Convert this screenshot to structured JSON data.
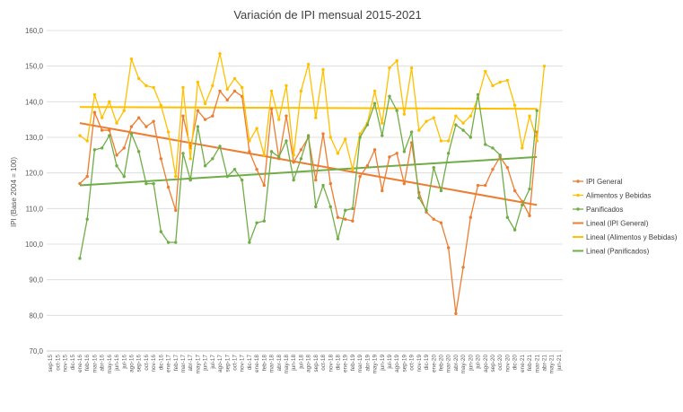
{
  "chart_data": {
    "type": "line",
    "title": "Variación de IPI mensual 2015-2021",
    "ylabel": "IPI (Base 2004 = 100)",
    "xlabel": "",
    "ylim": [
      70,
      160
    ],
    "yticks": [
      "70,0",
      "80,0",
      "90,0",
      "100,0",
      "110,0",
      "120,0",
      "130,0",
      "140,0",
      "150,0",
      "160,0"
    ],
    "grid": true,
    "legend_position": "right",
    "categories": [
      "sep-15",
      "oct-15",
      "nov-15",
      "dic-15",
      "ene-16",
      "feb-16",
      "mar-16",
      "abr-16",
      "may-16",
      "jun-16",
      "jul-16",
      "ago-16",
      "sep-16",
      "oct-16",
      "nov-16",
      "dic-16",
      "ene-17",
      "feb-17",
      "mar-17",
      "abr-17",
      "may-17",
      "jun-17",
      "jul-17",
      "ago-17",
      "sep-17",
      "oct-17",
      "nov-17",
      "dic-17",
      "ene-18",
      "feb-18",
      "mar-18",
      "abr-18",
      "may-18",
      "jun-18",
      "jul-18",
      "ago-18",
      "sep-18",
      "oct-18",
      "nov-18",
      "dic-18",
      "ene-19",
      "feb-19",
      "mar-19",
      "abr-19",
      "may-19",
      "jun-19",
      "jul-19",
      "ago-19",
      "sep-19",
      "oct-19",
      "nov-19",
      "dic-19",
      "ene-20",
      "feb-20",
      "mar-20",
      "abr-20",
      "may-20",
      "jun-20",
      "jul-20",
      "ago-20",
      "sep-20",
      "oct-20",
      "nov-20",
      "dic-20",
      "ene-21",
      "feb-21",
      "mar-21",
      "abr-21",
      "may-21",
      "jun-21"
    ],
    "series": [
      {
        "name": "IPI General",
        "color": "#ED7D31",
        "values": [
          null,
          null,
          null,
          null,
          117,
          119,
          137,
          132,
          132,
          125,
          127,
          133,
          135.5,
          133,
          134.5,
          124,
          116,
          109.5,
          136,
          127,
          137.5,
          135,
          136,
          143,
          140.5,
          143,
          141.5,
          126,
          121,
          116.5,
          138,
          124,
          136,
          123,
          126.5,
          130,
          118,
          131,
          117,
          107.5,
          107,
          106.5,
          119,
          122,
          126.5,
          115,
          124.5,
          125.5,
          117,
          128.5,
          114.5,
          109,
          107,
          106,
          99,
          80.5,
          93.5,
          107.5,
          116.5,
          116.5,
          121,
          124.5,
          121.5,
          115,
          112,
          108,
          131.5,
          null,
          null,
          null
        ]
      },
      {
        "name": "Alimentos y Bebidas",
        "color": "#FFC000",
        "values": [
          null,
          null,
          null,
          null,
          130.5,
          129,
          142,
          135.5,
          140,
          134,
          137.5,
          152,
          146.5,
          144.5,
          144,
          139,
          131.5,
          119,
          144,
          124,
          145.5,
          139.5,
          144.5,
          153.5,
          143.5,
          146.5,
          144,
          129,
          132.5,
          125,
          143,
          135,
          144.5,
          125,
          143,
          150.5,
          135.5,
          149,
          130,
          125.5,
          129.5,
          121,
          131,
          134,
          143,
          134,
          149.5,
          151.5,
          136.5,
          149.5,
          132,
          134.5,
          135.5,
          129,
          129,
          136,
          134,
          136,
          141,
          148.5,
          144.5,
          145.5,
          146,
          139,
          127,
          136,
          129,
          150,
          null,
          null
        ]
      },
      {
        "name": "Panificados",
        "color": "#70AD47",
        "values": [
          null,
          null,
          null,
          null,
          96,
          107,
          126.5,
          127,
          130.5,
          122,
          119,
          131,
          126,
          117,
          117,
          103.5,
          100.5,
          100.5,
          125.5,
          118,
          133,
          122,
          124,
          127.5,
          119,
          121,
          118,
          100.5,
          106,
          106.5,
          126,
          124.5,
          129,
          118,
          124,
          130.5,
          110.5,
          116.5,
          110.5,
          101.5,
          109.5,
          110,
          130,
          133.5,
          139.5,
          130.5,
          141.5,
          137.5,
          126,
          131.5,
          113,
          109.5,
          121.5,
          115,
          125.5,
          133.5,
          132,
          130,
          142,
          128,
          127,
          125,
          107.5,
          104,
          111,
          115.5,
          137.5,
          null,
          null,
          null
        ]
      }
    ],
    "trendlines": [
      {
        "name": "Lineal (IPI General)",
        "color": "#ED7D31",
        "x_start": "ene-16",
        "y_start": 134,
        "x_end": "mar-21",
        "y_end": 111
      },
      {
        "name": "Lineal (Alimentos y Bebidas)",
        "color": "#FFC000",
        "x_start": "ene-16",
        "y_start": 138.5,
        "x_end": "mar-21",
        "y_end": 138
      },
      {
        "name": "Lineal (Panificados)",
        "color": "#70AD47",
        "x_start": "ene-16",
        "y_start": 116.5,
        "x_end": "mar-21",
        "y_end": 124.5
      }
    ]
  }
}
